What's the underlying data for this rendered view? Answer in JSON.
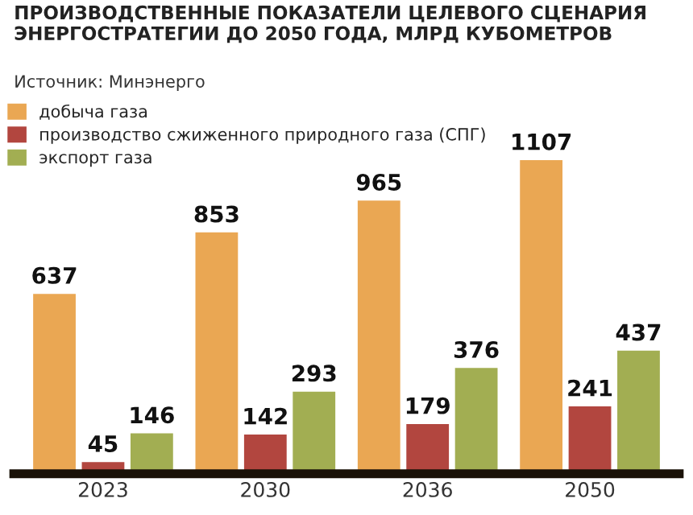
{
  "chart_data": {
    "type": "bar",
    "title": "ПРОИЗВОДСТВЕННЫЕ ПОКАЗАТЕЛИ ЦЕЛЕВОГО СЦЕНАРИЯ\nЭНЕРГОСТРАТЕГИИ ДО 2050 ГОДА, МЛРД КУБОМЕТРОВ",
    "annotations": [
      "Источник: Минэнерго"
    ],
    "categories": [
      "2023",
      "2030",
      "2036",
      "2050"
    ],
    "series": [
      {
        "name": "добыча газа",
        "color": "#eaa753",
        "values": [
          637,
          853,
          965,
          1107
        ]
      },
      {
        "name": "производство сжиженного природного газа (СПГ)",
        "color": "#b2463f",
        "values": [
          45,
          142,
          179,
          241
        ]
      },
      {
        "name": "экспорт газа",
        "color": "#a2ae52",
        "values": [
          146,
          293,
          376,
          437
        ]
      }
    ],
    "data_labels": true,
    "legend": "top left",
    "grid": false
  }
}
